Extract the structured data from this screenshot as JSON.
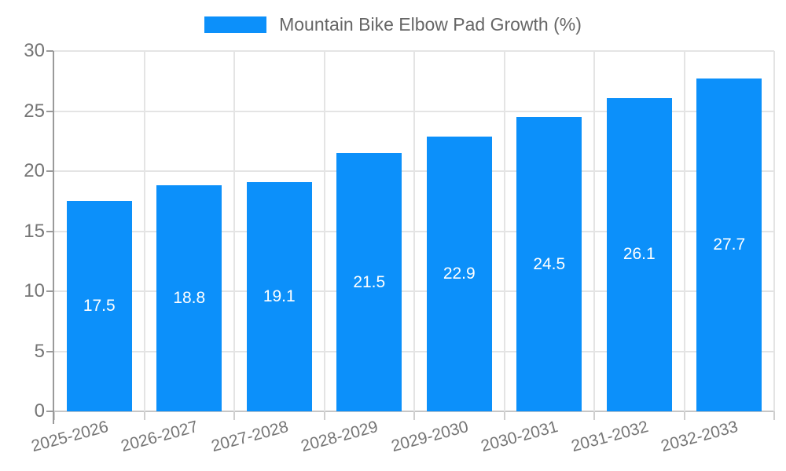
{
  "chart_data": {
    "type": "bar",
    "title": "Mountain Bike Elbow Pad Growth (%)",
    "legend": {
      "label": "Mountain Bike Elbow Pad Growth (%)",
      "position": "top-center"
    },
    "categories": [
      "2025-2026",
      "2026-2027",
      "2027-2028",
      "2028-2029",
      "2029-2030",
      "2030-2031",
      "2031-2032",
      "2032-2033"
    ],
    "series": [
      {
        "name": "Mountain Bike Elbow Pad Growth (%)",
        "values": [
          17.5,
          18.8,
          19.1,
          21.5,
          22.9,
          24.5,
          26.1,
          27.7
        ]
      }
    ],
    "value_labels": [
      "17.5",
      "18.8",
      "19.1",
      "21.5",
      "22.9",
      "24.5",
      "26.1",
      "27.7"
    ],
    "value_label_position": "inside-middle",
    "xlabel": "",
    "ylabel": "",
    "ylim": [
      0,
      30
    ],
    "yticks": [
      0,
      5,
      10,
      15,
      20,
      25,
      30
    ],
    "grid": "both",
    "x_tick_rotation_deg": -15,
    "colors": {
      "bar": "#0C90FA",
      "bar_label": "#FFFFFF",
      "grid_line": "#E4E4E4",
      "axis_base_line": "#C6C6C6",
      "axis_line": "#9A9A9A",
      "tick_label": "#757575",
      "legend_text": "#666666",
      "background": "#FFFFFF"
    }
  }
}
